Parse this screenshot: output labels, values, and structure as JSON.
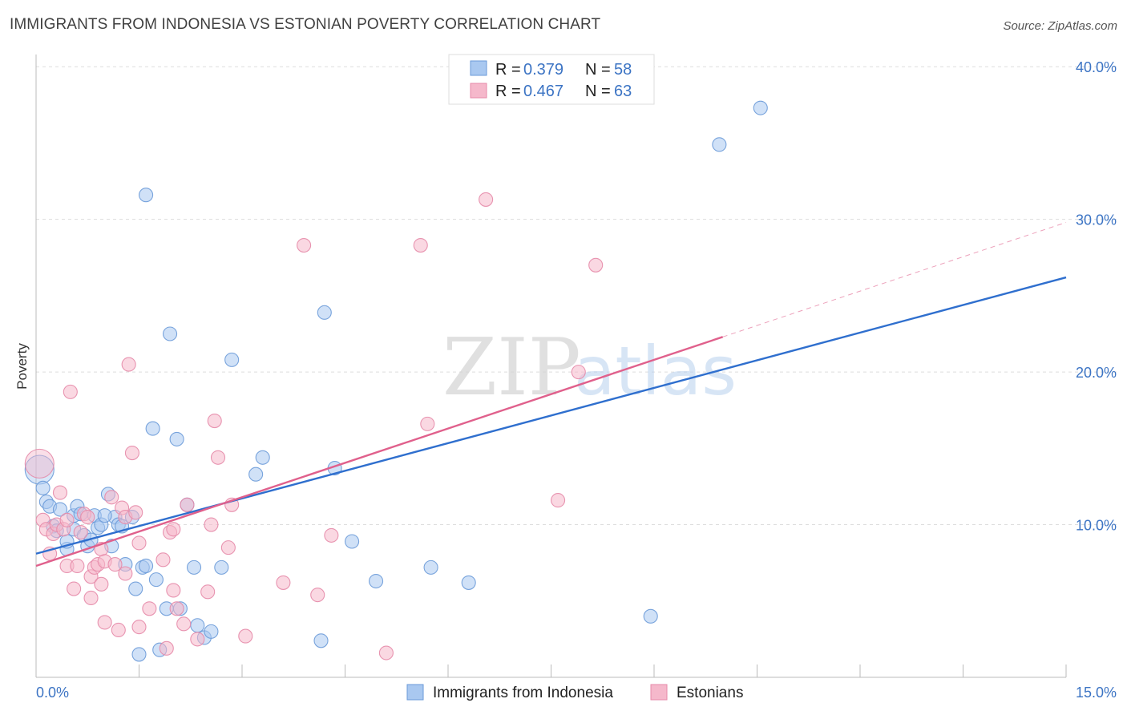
{
  "title": "IMMIGRANTS FROM INDONESIA VS ESTONIAN POVERTY CORRELATION CHART",
  "source": "Source: ZipAtlas.com",
  "watermark": {
    "zip": "ZIP",
    "atlas": "atlas"
  },
  "colors": {
    "blue_fill": "#a9c8f0",
    "blue_stroke": "#6a9ad8",
    "blue_line": "#2f6fce",
    "pink_fill": "#f5b8cb",
    "pink_stroke": "#e68aa8",
    "pink_line": "#e0608c",
    "axis_text": "#3c74c4",
    "grid": "#dddddd"
  },
  "legend": {
    "rows": [
      {
        "r_label": "R = ",
        "r_value": "0.379",
        "n_label": "N = ",
        "n_value": "58",
        "series": "blue"
      },
      {
        "r_label": "R = ",
        "r_value": "0.467",
        "n_label": "N = ",
        "n_value": "63",
        "series": "pink"
      }
    ]
  },
  "bottom_legend": [
    {
      "label": "Immigrants from Indonesia",
      "series": "blue"
    },
    {
      "label": "Estonians",
      "series": "pink"
    }
  ],
  "chart_data": {
    "type": "scatter",
    "title": "IMMIGRANTS FROM INDONESIA VS ESTONIAN POVERTY CORRELATION CHART",
    "xlabel": "",
    "ylabel": "Poverty",
    "xlim": [
      0,
      15
    ],
    "ylim": [
      0,
      40.8
    ],
    "x_tick_labels": [
      {
        "value": 0,
        "label": "0.0%"
      },
      {
        "value": 15,
        "label": "15.0%"
      }
    ],
    "x_minor_ticks": [
      1.5,
      3,
      4.5,
      6,
      7.5,
      9,
      10.5,
      12,
      13.5,
      15
    ],
    "y_ticks": [
      {
        "value": 10,
        "label": "10.0%"
      },
      {
        "value": 20,
        "label": "20.0%"
      },
      {
        "value": 30,
        "label": "30.0%"
      },
      {
        "value": 40,
        "label": "40.0%"
      }
    ],
    "series": [
      {
        "name": "Immigrants from Indonesia",
        "color": "blue",
        "trend": {
          "x": [
            0,
            15
          ],
          "y": [
            8.1,
            26.2
          ],
          "dashed_to": null
        },
        "points": [
          [
            0.05,
            13.6
          ],
          [
            0.1,
            12.4
          ],
          [
            0.15,
            11.5
          ],
          [
            0.2,
            11.2
          ],
          [
            0.25,
            9.9
          ],
          [
            0.3,
            9.6
          ],
          [
            0.35,
            11.0
          ],
          [
            0.45,
            8.4
          ],
          [
            0.45,
            8.9
          ],
          [
            0.55,
            10.6
          ],
          [
            0.55,
            9.7
          ],
          [
            0.6,
            11.2
          ],
          [
            0.65,
            10.7
          ],
          [
            0.7,
            9.3
          ],
          [
            0.75,
            8.6
          ],
          [
            0.8,
            9.0
          ],
          [
            0.85,
            10.6
          ],
          [
            0.9,
            9.8
          ],
          [
            0.95,
            10.0
          ],
          [
            1.05,
            12.0
          ],
          [
            1.1,
            8.6
          ],
          [
            1.15,
            10.5
          ],
          [
            1.2,
            10.0
          ],
          [
            1.25,
            9.9
          ],
          [
            1.3,
            7.4
          ],
          [
            1.4,
            10.5
          ],
          [
            1.45,
            5.8
          ],
          [
            1.5,
            1.5
          ],
          [
            1.55,
            7.2
          ],
          [
            1.6,
            7.3
          ],
          [
            1.6,
            31.6
          ],
          [
            1.7,
            16.3
          ],
          [
            1.75,
            6.4
          ],
          [
            1.8,
            1.8
          ],
          [
            1.9,
            4.5
          ],
          [
            1.95,
            22.5
          ],
          [
            2.05,
            15.6
          ],
          [
            2.1,
            4.5
          ],
          [
            2.2,
            11.3
          ],
          [
            2.3,
            7.2
          ],
          [
            2.35,
            3.4
          ],
          [
            2.45,
            2.6
          ],
          [
            2.55,
            3.0
          ],
          [
            2.7,
            7.2
          ],
          [
            2.85,
            20.8
          ],
          [
            3.2,
            13.3
          ],
          [
            3.3,
            14.4
          ],
          [
            4.15,
            2.4
          ],
          [
            4.2,
            23.9
          ],
          [
            4.35,
            13.7
          ],
          [
            4.6,
            8.9
          ],
          [
            4.95,
            6.3
          ],
          [
            5.75,
            7.2
          ],
          [
            6.3,
            6.2
          ],
          [
            8.95,
            4.0
          ],
          [
            9.95,
            34.9
          ],
          [
            10.55,
            37.3
          ],
          [
            1.0,
            10.6
          ]
        ]
      },
      {
        "name": "Estonians",
        "color": "pink",
        "trend": {
          "x": [
            0,
            10
          ],
          "y": [
            7.3,
            22.3
          ],
          "dashed_to": {
            "x": 15,
            "y": 29.8
          }
        },
        "points": [
          [
            0.05,
            14.0
          ],
          [
            0.1,
            10.3
          ],
          [
            0.15,
            9.7
          ],
          [
            0.2,
            8.1
          ],
          [
            0.25,
            9.4
          ],
          [
            0.3,
            10.0
          ],
          [
            0.35,
            12.1
          ],
          [
            0.4,
            9.7
          ],
          [
            0.45,
            10.3
          ],
          [
            0.45,
            7.3
          ],
          [
            0.5,
            18.7
          ],
          [
            0.55,
            5.8
          ],
          [
            0.6,
            7.3
          ],
          [
            0.65,
            9.5
          ],
          [
            0.7,
            10.7
          ],
          [
            0.75,
            10.5
          ],
          [
            0.8,
            6.6
          ],
          [
            0.8,
            5.2
          ],
          [
            0.85,
            7.2
          ],
          [
            0.9,
            7.4
          ],
          [
            0.95,
            6.1
          ],
          [
            0.95,
            8.4
          ],
          [
            1.0,
            3.6
          ],
          [
            1.0,
            7.6
          ],
          [
            1.1,
            11.8
          ],
          [
            1.15,
            7.4
          ],
          [
            1.2,
            3.1
          ],
          [
            1.25,
            11.1
          ],
          [
            1.3,
            10.5
          ],
          [
            1.3,
            6.8
          ],
          [
            1.35,
            20.5
          ],
          [
            1.4,
            14.7
          ],
          [
            1.45,
            10.8
          ],
          [
            1.5,
            3.3
          ],
          [
            1.5,
            8.8
          ],
          [
            1.65,
            4.5
          ],
          [
            1.85,
            7.7
          ],
          [
            1.9,
            1.9
          ],
          [
            1.95,
            9.5
          ],
          [
            2.0,
            9.7
          ],
          [
            2.0,
            5.7
          ],
          [
            2.05,
            4.5
          ],
          [
            2.15,
            3.5
          ],
          [
            2.2,
            11.3
          ],
          [
            2.35,
            2.5
          ],
          [
            2.5,
            5.6
          ],
          [
            2.55,
            10.0
          ],
          [
            2.6,
            16.8
          ],
          [
            2.65,
            14.4
          ],
          [
            2.8,
            8.5
          ],
          [
            2.85,
            11.3
          ],
          [
            3.05,
            2.7
          ],
          [
            3.6,
            6.2
          ],
          [
            3.9,
            28.3
          ],
          [
            4.1,
            5.4
          ],
          [
            4.3,
            9.3
          ],
          [
            5.1,
            1.6
          ],
          [
            5.6,
            28.3
          ],
          [
            5.7,
            16.6
          ],
          [
            6.55,
            31.3
          ],
          [
            7.6,
            11.6
          ],
          [
            7.9,
            20.0
          ],
          [
            8.15,
            27.0
          ]
        ]
      }
    ]
  }
}
